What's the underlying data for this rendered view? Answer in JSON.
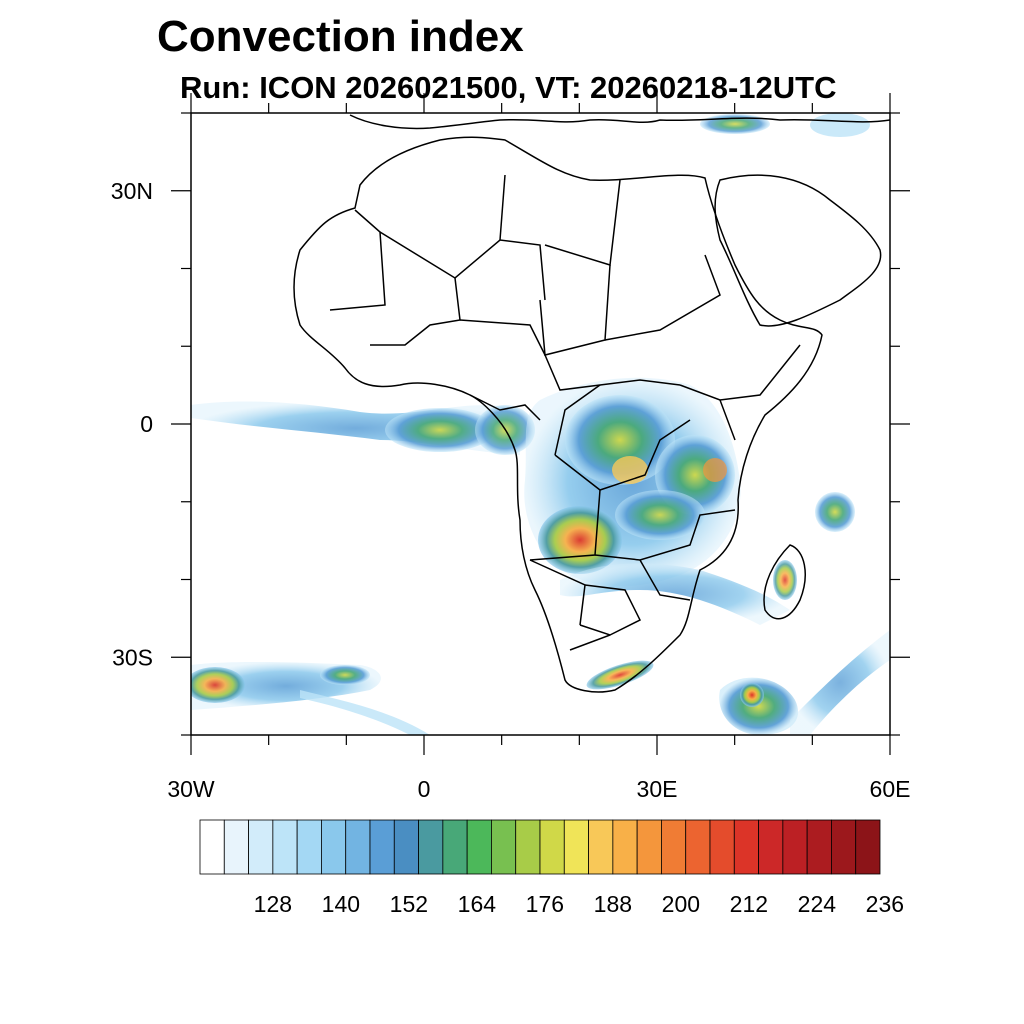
{
  "title": "Convection index",
  "subtitle": "Run: ICON 2026021500,  VT: 20260218-12UTC",
  "map": {
    "lon_range": [
      -30,
      60
    ],
    "lat_range": [
      -40,
      40
    ],
    "x_ticks": [
      {
        "lon": -30,
        "label": "30W"
      },
      {
        "lon": 0,
        "label": "0"
      },
      {
        "lon": 30,
        "label": "30E"
      },
      {
        "lon": 60,
        "label": "60E"
      }
    ],
    "y_ticks": [
      {
        "lat": 30,
        "label": "30N"
      },
      {
        "lat": 0,
        "label": "0"
      },
      {
        "lat": -30,
        "label": "30S"
      }
    ],
    "minor_lon_step": 10,
    "minor_lat_step": 10
  },
  "colorbar": {
    "colors": [
      "#ffffff",
      "#e8f4fc",
      "#d2ecfa",
      "#bde4f8",
      "#a4d8f4",
      "#8ac8ec",
      "#72b4e2",
      "#5a9ed6",
      "#4a8ec2",
      "#4a9aa0",
      "#48a878",
      "#4cb85a",
      "#78c050",
      "#a8cc48",
      "#d0d848",
      "#f0e458",
      "#f8c858",
      "#f8b048",
      "#f4963c",
      "#f07c34",
      "#ec6430",
      "#e44c2c",
      "#dc3428",
      "#cc2828",
      "#bc2024",
      "#ac1c20",
      "#9c181c",
      "#8c1418"
    ],
    "labels": [
      "128",
      "140",
      "152",
      "164",
      "176",
      "188",
      "200",
      "212",
      "224",
      "236"
    ]
  }
}
